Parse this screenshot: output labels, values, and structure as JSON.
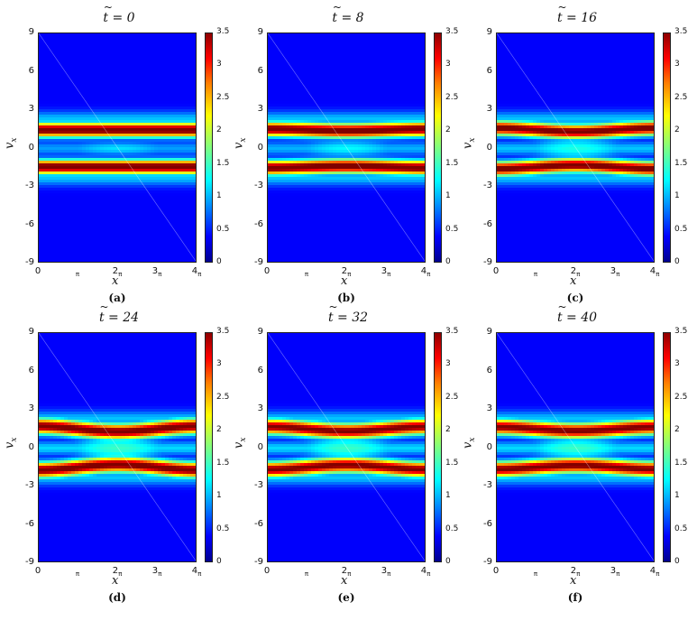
{
  "chart_data": [
    {
      "type": "heatmap",
      "title": "t = 0",
      "caption": "(a)",
      "t": 0,
      "xlabel": "x",
      "ylabel": "v_x",
      "ylim": [
        -9,
        9
      ],
      "xlim": [
        0,
        12.566
      ],
      "clim": [
        0,
        3.5
      ],
      "phase_amplitude": 0.0,
      "band_center": 1.45,
      "band_width": 0.55,
      "peak": 3.4,
      "hole_level": 0.8
    },
    {
      "type": "heatmap",
      "title": "t = 8",
      "caption": "(b)",
      "t": 8,
      "xlabel": "x",
      "ylabel": "v_x",
      "ylim": [
        -9,
        9
      ],
      "xlim": [
        0,
        12.566
      ],
      "clim": [
        0,
        3.5
      ],
      "phase_amplitude": 0.25,
      "band_center": 1.45,
      "band_width": 0.55,
      "peak": 3.4,
      "hole_level": 0.9
    },
    {
      "type": "heatmap",
      "title": "t = 16",
      "caption": "(c)",
      "t": 16,
      "xlabel": "x",
      "ylabel": "v_x",
      "ylim": [
        -9,
        9
      ],
      "xlim": [
        0,
        12.566
      ],
      "clim": [
        0,
        3.5
      ],
      "phase_amplitude": 0.55,
      "band_center": 1.45,
      "band_width": 0.55,
      "peak": 3.3,
      "hole_level": 1.0
    },
    {
      "type": "heatmap",
      "title": "t = 24",
      "caption": "(d)",
      "t": 24,
      "xlabel": "x",
      "ylabel": "v_x",
      "ylim": [
        -9,
        9
      ],
      "xlim": [
        0,
        12.566
      ],
      "clim": [
        0,
        3.5
      ],
      "phase_amplitude": 0.85,
      "band_center": 1.5,
      "band_width": 0.6,
      "peak": 3.3,
      "hole_level": 1.1
    },
    {
      "type": "heatmap",
      "title": "t = 32",
      "caption": "(e)",
      "t": 32,
      "xlabel": "x",
      "ylabel": "v_x",
      "ylim": [
        -9,
        9
      ],
      "xlim": [
        0,
        12.566
      ],
      "clim": [
        0,
        3.5
      ],
      "phase_amplitude": 0.7,
      "band_center": 1.5,
      "band_width": 0.6,
      "peak": 3.2,
      "hole_level": 1.1
    },
    {
      "type": "heatmap",
      "title": "t = 40",
      "caption": "(f)",
      "t": 40,
      "xlabel": "x",
      "ylabel": "v_x",
      "ylim": [
        -9,
        9
      ],
      "xlim": [
        0,
        12.566
      ],
      "clim": [
        0,
        3.5
      ],
      "phase_amplitude": 0.6,
      "band_center": 1.5,
      "band_width": 0.6,
      "peak": 3.2,
      "hole_level": 1.1
    }
  ],
  "axes": {
    "yticks": [
      "9",
      "6",
      "3",
      "0",
      "-3",
      "-6",
      "-9"
    ],
    "xticks": [
      {
        "main": "0",
        "sub": ""
      },
      {
        "main": "",
        "sub": "π"
      },
      {
        "main": "2",
        "sub": "π"
      },
      {
        "main": "3",
        "sub": "π"
      },
      {
        "main": "4",
        "sub": "π"
      }
    ],
    "cticks": [
      "3.5",
      "3",
      "2.5",
      "2",
      "1.5",
      "1",
      "0.5",
      "0"
    ],
    "ylabel": "v",
    "ylabel_sub": "x",
    "xlabel": "x"
  },
  "colors": {
    "background": "#1a2fff",
    "hot": "#ff1a00"
  }
}
